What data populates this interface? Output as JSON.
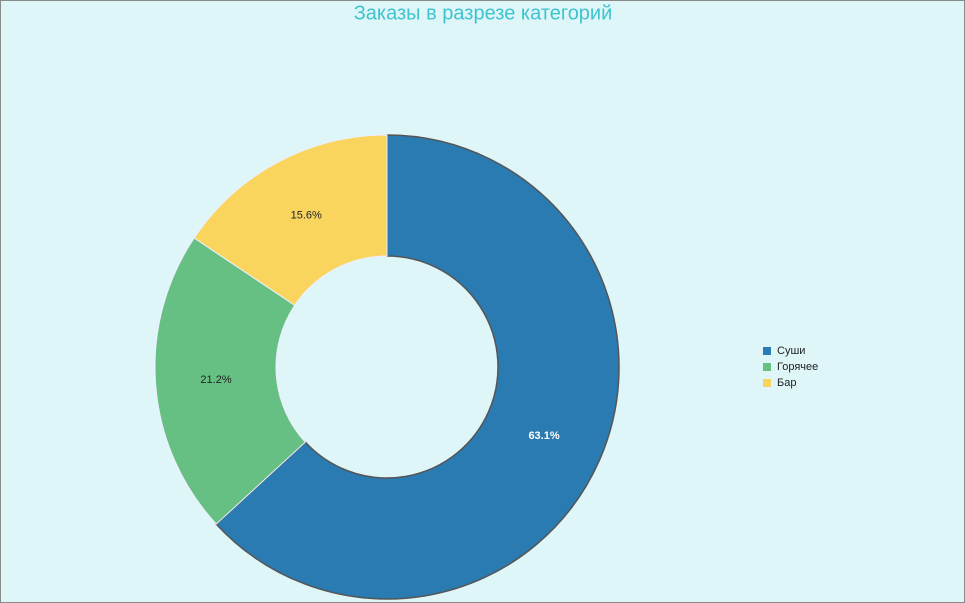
{
  "chart_data": {
    "type": "donut",
    "title": "Заказы в разрезе категорий",
    "categories": [
      "Суши",
      "Горячее",
      "Бар"
    ],
    "values": [
      63.1,
      21.2,
      15.6
    ],
    "value_labels": [
      "63.1%",
      "21.2%",
      "15.6%"
    ],
    "colors": [
      "#2a7bb2",
      "#67c083",
      "#f9d55e"
    ],
    "legend": "right"
  }
}
